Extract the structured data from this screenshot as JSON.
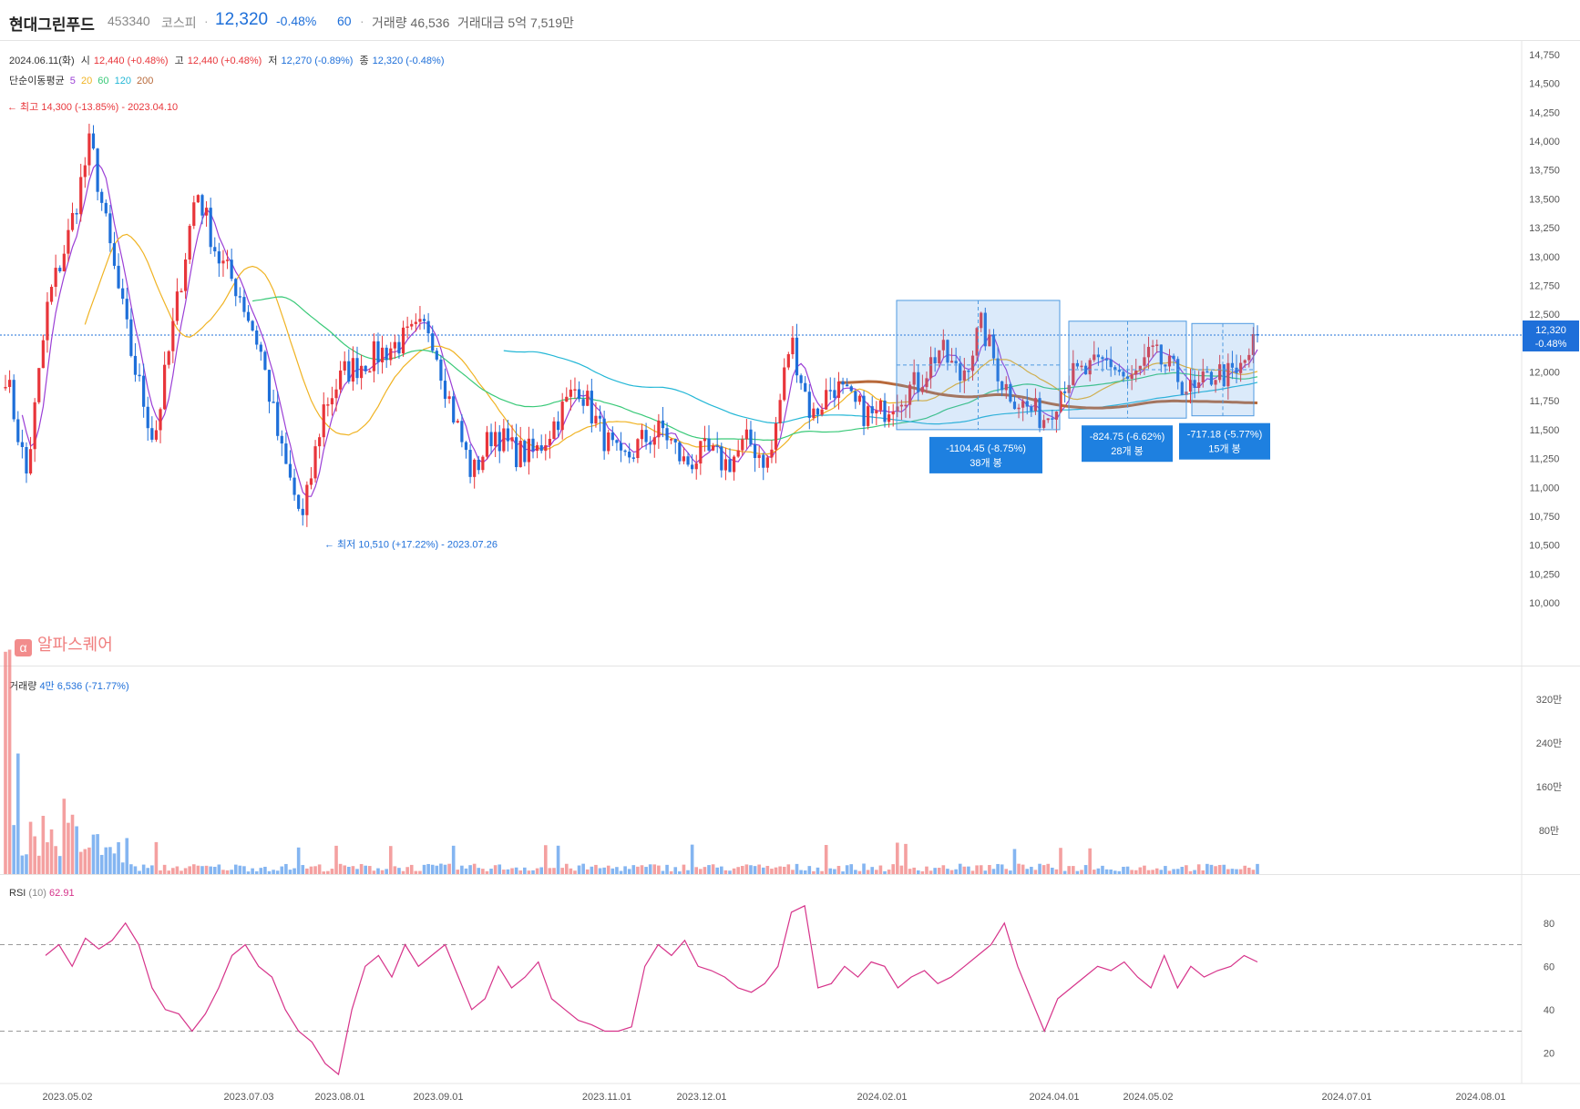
{
  "header": {
    "name": "현대그린푸드",
    "code": "453340",
    "market": "코스피",
    "separator": "·",
    "price": "12,320",
    "change": "-0.48%",
    "interval": "60",
    "volume": "거래량 46,536",
    "amount": "거래대금 5억 7,519만"
  },
  "ohlc": {
    "date": "2024.06.11(화)",
    "open_label": "시",
    "open": "12,440 (+0.48%)",
    "high_label": "고",
    "high": "12,440 (+0.48%)",
    "low_label": "저",
    "low": "12,270 (-0.89%)",
    "close_label": "종",
    "close": "12,320 (-0.48%)"
  },
  "ma_legend": {
    "label": "단순이동평균",
    "p5": "5",
    "p20": "20",
    "p60": "60",
    "p120": "120",
    "p200": "200"
  },
  "colors": {
    "up": "#e8353a",
    "down": "#1e6fd9",
    "ma5": "#9b3fd6",
    "ma20": "#f0b323",
    "ma60": "#39c978",
    "ma120": "#24b7d6",
    "ma200": "#b8693a",
    "rsi": "#d6338a"
  },
  "logo": {
    "icon": "alpha-icon",
    "icon_glyph": "α",
    "text": "알파스퀘어"
  },
  "volume_legend": {
    "label": "거래량",
    "value": "4만 6,536",
    "pct": "(-71.77%)"
  },
  "rsi_legend": {
    "label": "RSI",
    "period": "(10)",
    "value": "62.91"
  },
  "chart_data": [
    {
      "type": "candlestick",
      "title": "",
      "y_ticks": [
        "14,750",
        "14,500",
        "14,250",
        "14,000",
        "13,750",
        "13,500",
        "13,250",
        "13,000",
        "12,750",
        "12,500",
        "12,250",
        "12,000",
        "11,750",
        "11,500",
        "11,250",
        "11,000",
        "10,750",
        "10,500",
        "10,250",
        "10,000"
      ],
      "ylim": [
        10000,
        14750
      ],
      "current_price": {
        "value": 12320,
        "label": "12,320",
        "change": "-0.48%"
      },
      "annotations": {
        "high": {
          "text": "최고 14,300 (-13.85%) - 2023.04.10",
          "value": 14300
        },
        "low": {
          "text": "최저 10,510 (+17.22%) - 2023.07.26",
          "value": 10510
        },
        "measures": [
          {
            "text": "-1104.45 (-8.75%)",
            "bars": "38개 봉",
            "high": 12620,
            "low": 11500
          },
          {
            "text": "-824.75 (-6.62%)",
            "bars": "28개 봉",
            "high": 12440,
            "low": 11600
          },
          {
            "text": "-717.18 (-5.77%)",
            "bars": "15개 봉",
            "high": 12420,
            "low": 11620
          }
        ]
      },
      "moving_averages": [
        "5",
        "20",
        "60",
        "120",
        "200"
      ],
      "keypoints_close": [
        12000,
        11100,
        12600,
        13200,
        14000,
        13000,
        12100,
        11400,
        12500,
        13600,
        13000,
        12700,
        12200,
        11300,
        10700,
        11700,
        12000,
        12100,
        12200,
        12300,
        12400,
        11700,
        11100,
        11500,
        11300,
        11300,
        11600,
        11900,
        11500,
        11200,
        11400,
        11500,
        11200,
        11300,
        11200,
        11400,
        11200,
        12300,
        11600,
        11900,
        11700,
        11600,
        11800,
        11900,
        12200,
        11950,
        12400,
        11900,
        11700,
        11600,
        11950,
        12000,
        12100,
        11900,
        12150,
        12000,
        11800,
        12000,
        11950,
        12300
      ]
    },
    {
      "type": "bar",
      "title": "",
      "y_ticks": [
        "320만",
        "240만",
        "160만",
        "80만"
      ],
      "ylim": [
        0,
        3500000
      ]
    },
    {
      "type": "line",
      "title": "",
      "series_name": "RSI (10)",
      "y_ticks": [
        "80",
        "60",
        "40",
        "20"
      ],
      "ylim": [
        10,
        90
      ],
      "reference_lines": [
        70,
        30
      ],
      "keypoints": [
        65,
        70,
        60,
        73,
        68,
        72,
        80,
        70,
        50,
        40,
        38,
        30,
        38,
        50,
        65,
        70,
        60,
        55,
        40,
        30,
        25,
        15,
        10,
        40,
        60,
        65,
        55,
        70,
        60,
        65,
        70,
        55,
        40,
        45,
        60,
        50,
        55,
        62,
        45,
        40,
        35,
        33,
        30,
        30,
        32,
        60,
        70,
        65,
        72,
        60,
        58,
        55,
        50,
        48,
        52,
        60,
        85,
        88,
        50,
        52,
        60,
        55,
        62,
        60,
        50,
        55,
        58,
        52,
        55,
        60,
        65,
        70,
        80,
        60,
        45,
        30,
        45,
        50,
        55,
        60,
        58,
        62,
        55,
        50,
        65,
        50,
        60,
        55,
        58,
        60,
        65,
        62
      ]
    }
  ],
  "x_axis": {
    "ticks": [
      {
        "label": "2023.05.02",
        "x": 74
      },
      {
        "label": "2023.07.03",
        "x": 273
      },
      {
        "label": "2023.08.01",
        "x": 373
      },
      {
        "label": "2023.09.01",
        "x": 481
      },
      {
        "label": "2023.11.01",
        "x": 666
      },
      {
        "label": "2023.12.01",
        "x": 770
      },
      {
        "label": "2024.02.01",
        "x": 968
      },
      {
        "label": "2024.04.01",
        "x": 1157
      },
      {
        "label": "2024.05.02",
        "x": 1260
      },
      {
        "label": "2024.07.01",
        "x": 1478
      },
      {
        "label": "2024.08.01",
        "x": 1625
      }
    ]
  }
}
